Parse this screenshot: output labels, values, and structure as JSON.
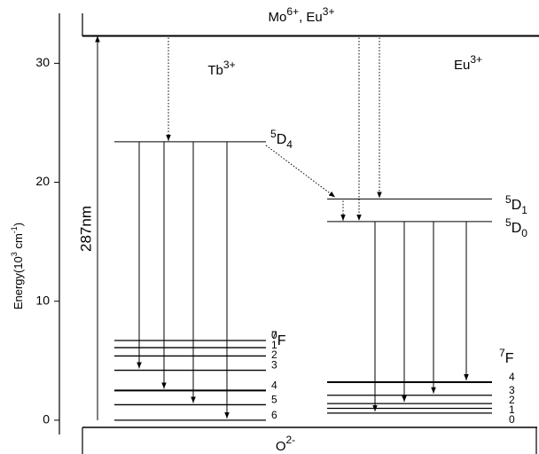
{
  "chart_data": {
    "type": "energy-levels",
    "y_label": [
      "Energy(10",
      "3",
      " cm",
      "-1",
      ")"
    ],
    "ylim": [
      -1.2,
      34.2
    ],
    "yticks": [
      0,
      10,
      20,
      30
    ],
    "top_level": {
      "label": [
        "Mo",
        "6+",
        ",  Eu",
        "3+"
      ],
      "value": 32.3
    },
    "bottom_label": [
      "O",
      "2-"
    ],
    "excitation": "287nm",
    "ions": [
      {
        "name": [
          "Tb",
          "3+"
        ],
        "excited": [
          {
            "term": [
              "5",
              "D",
              "4"
            ],
            "value": 23.4
          }
        ],
        "ground_term": [
          "7",
          "F"
        ],
        "ground": [
          {
            "label": "0",
            "value": 6.7
          },
          {
            "label": "1",
            "value": 6.1
          },
          {
            "label": "2",
            "value": 5.4
          },
          {
            "label": "3",
            "value": 4.2
          },
          {
            "label": "4",
            "value": 2.5
          },
          {
            "label": "5",
            "value": 1.3
          },
          {
            "label": "6",
            "value": 0.0
          }
        ]
      },
      {
        "name": [
          "Eu",
          "3+"
        ],
        "excited": [
          {
            "term": [
              "5",
              "D",
              "1"
            ],
            "value": 18.6
          },
          {
            "term": [
              "5",
              "D",
              "0"
            ],
            "value": 16.7
          }
        ],
        "ground_term": [
          "7",
          "F"
        ],
        "ground": [
          {
            "label": "4",
            "value": 3.2
          },
          {
            "label": "3",
            "value": 2.1
          },
          {
            "label": "2",
            "value": 1.4
          },
          {
            "label": "1",
            "value": 1.0
          },
          {
            "label": "0",
            "value": 0.6
          }
        ]
      }
    ]
  }
}
